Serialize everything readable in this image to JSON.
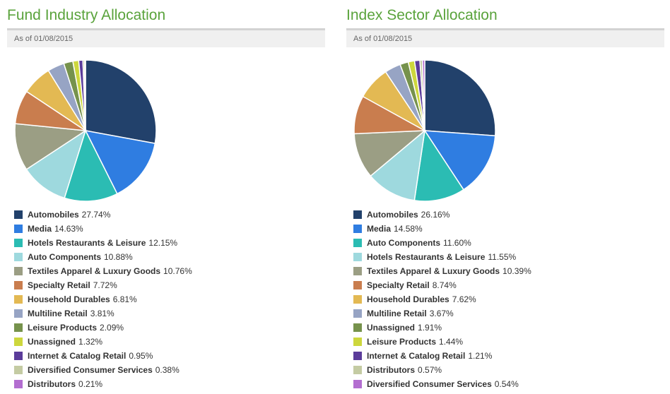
{
  "panels": [
    {
      "title": "Fund Industry Allocation",
      "as_of": "As of 01/08/2015"
    },
    {
      "title": "Index Sector Allocation",
      "as_of": "As of 01/08/2015"
    }
  ],
  "chart_data": [
    {
      "type": "pie",
      "title": "Fund Industry Allocation",
      "categories": [
        "Automobiles",
        "Media",
        "Hotels Restaurants & Leisure",
        "Auto Components",
        "Textiles Apparel & Luxury Goods",
        "Specialty Retail",
        "Household Durables",
        "Multiline Retail",
        "Leisure Products",
        "Unassigned",
        "Internet & Catalog Retail",
        "Diversified Consumer Services",
        "Distributors"
      ],
      "values": [
        27.74,
        14.63,
        12.15,
        10.88,
        10.76,
        7.72,
        6.81,
        3.81,
        2.09,
        1.32,
        0.95,
        0.38,
        0.21
      ],
      "value_labels": [
        "27.74%",
        "14.63%",
        "12.15%",
        "10.88%",
        "10.76%",
        "7.72%",
        "6.81%",
        "3.81%",
        "2.09%",
        "1.32%",
        "0.95%",
        "0.38%",
        "0.21%"
      ],
      "colors": [
        "#22416b",
        "#2f7de1",
        "#2bbcb3",
        "#9ed9de",
        "#9b9e84",
        "#c97d4e",
        "#e3b953",
        "#97a4c4",
        "#76924c",
        "#cdd73d",
        "#5b3c9a",
        "#c4cba3",
        "#b36ed0"
      ],
      "legend": "bottom"
    },
    {
      "type": "pie",
      "title": "Index Sector Allocation",
      "categories": [
        "Automobiles",
        "Media",
        "Auto Components",
        "Hotels Restaurants & Leisure",
        "Textiles Apparel & Luxury Goods",
        "Specialty Retail",
        "Household Durables",
        "Multiline Retail",
        "Unassigned",
        "Leisure Products",
        "Internet & Catalog Retail",
        "Distributors",
        "Diversified Consumer Services"
      ],
      "values": [
        26.16,
        14.58,
        11.6,
        11.55,
        10.39,
        8.74,
        7.62,
        3.67,
        1.91,
        1.44,
        1.21,
        0.57,
        0.54
      ],
      "value_labels": [
        "26.16%",
        "14.58%",
        "11.60%",
        "11.55%",
        "10.39%",
        "8.74%",
        "7.62%",
        "3.67%",
        "1.91%",
        "1.44%",
        "1.21%",
        "0.57%",
        "0.54%"
      ],
      "colors": [
        "#22416b",
        "#2f7de1",
        "#2bbcb3",
        "#9ed9de",
        "#9b9e84",
        "#c97d4e",
        "#e3b953",
        "#97a4c4",
        "#76924c",
        "#cdd73d",
        "#5b3c9a",
        "#c4cba3",
        "#b36ed0"
      ],
      "legend": "bottom"
    }
  ]
}
